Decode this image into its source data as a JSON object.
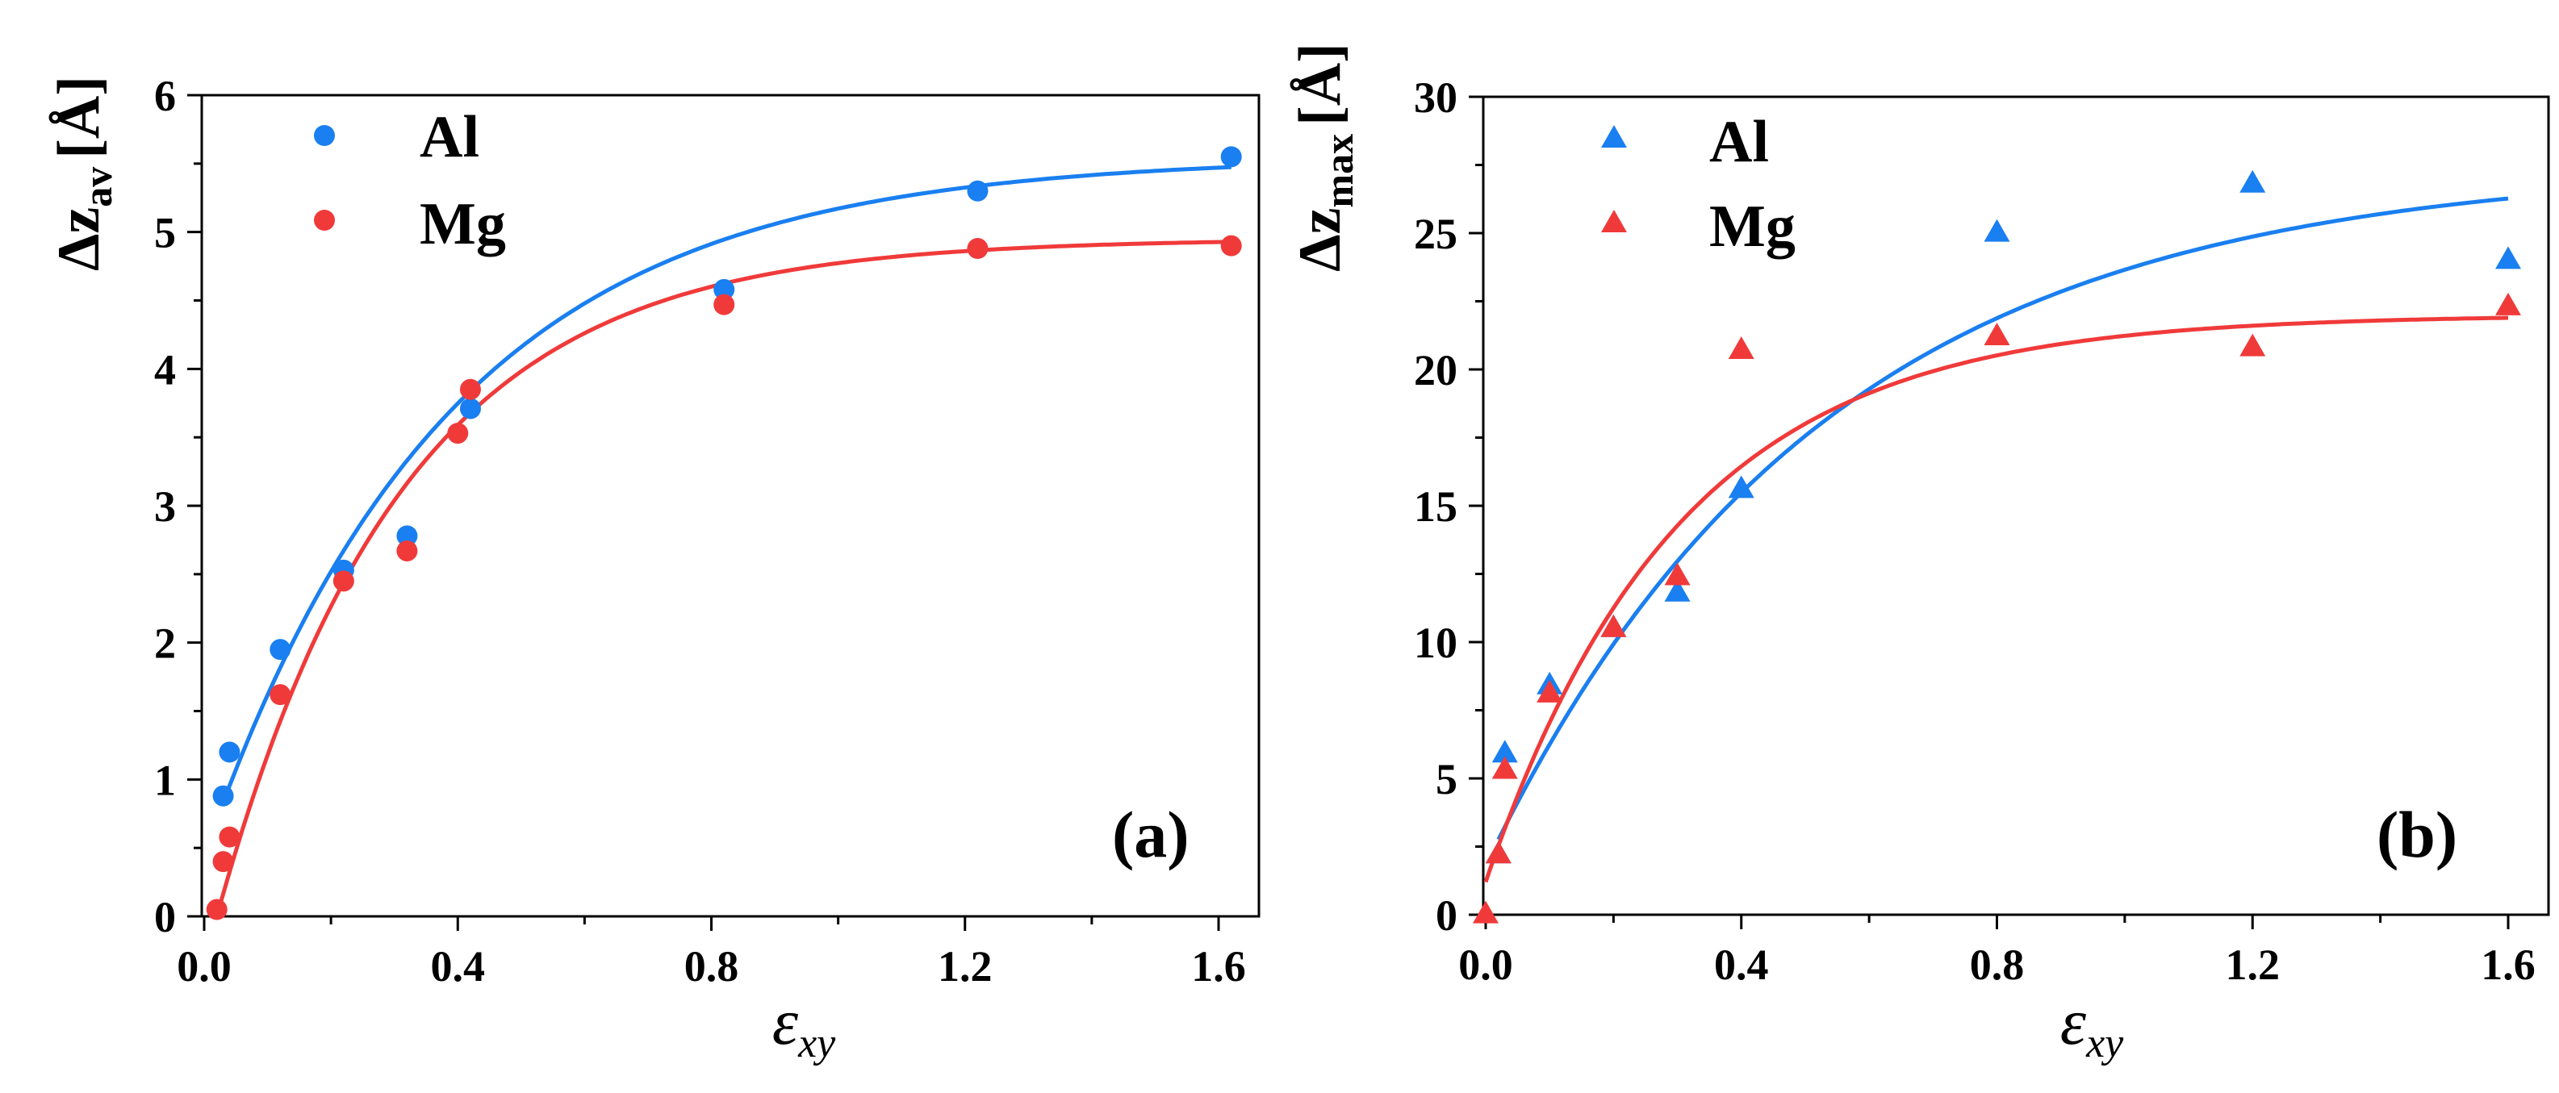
{
  "colors": {
    "Al": "#1a7ff0",
    "Mg": "#f03a3a"
  },
  "chart_data": [
    {
      "type": "scatter",
      "panel": "(a)",
      "ylabel": {
        "main": "Δz",
        "sub": "av",
        "unit": "[Å]"
      },
      "xlabel": {
        "main": "ε",
        "sub": "xy"
      },
      "xlim": [
        0,
        1.6
      ],
      "ylim": [
        0,
        6
      ],
      "xticks": [
        0.0,
        0.4,
        0.8,
        1.2,
        1.6
      ],
      "xtick_labels": [
        "0.0",
        "0.4",
        "0.8",
        "1.2",
        "1.6"
      ],
      "xminor": [
        0.2,
        0.6,
        1.0,
        1.4
      ],
      "yticks": [
        0,
        1,
        2,
        3,
        4,
        5,
        6
      ],
      "ytick_labels": [
        "0",
        "1",
        "2",
        "3",
        "4",
        "5",
        "6"
      ],
      "marker": "circle",
      "legend_position": "top-left",
      "series": [
        {
          "name": "Al",
          "x": [
            0.03,
            0.04,
            0.12,
            0.22,
            0.32,
            0.42,
            0.82,
            1.22,
            1.62
          ],
          "y": [
            0.88,
            1.2,
            1.95,
            2.53,
            2.78,
            3.71,
            4.58,
            5.3,
            5.55
          ],
          "fit": {
            "A": 5.55,
            "B": 5.1,
            "k": 2.6
          }
        },
        {
          "name": "Mg",
          "x": [
            0.02,
            0.03,
            0.04,
            0.12,
            0.22,
            0.32,
            0.4,
            0.42,
            0.82,
            1.22,
            1.62
          ],
          "y": [
            0.05,
            0.4,
            0.58,
            1.62,
            2.45,
            2.67,
            3.53,
            3.85,
            4.47,
            4.88,
            4.9
          ],
          "fit": {
            "A": 4.95,
            "B": 5.3,
            "k": 3.4
          }
        }
      ]
    },
    {
      "type": "scatter",
      "panel": "(b)",
      "ylabel": {
        "main": "Δz",
        "sub": "max",
        "unit": "[Å]"
      },
      "xlabel": {
        "main": "ε",
        "sub": "xy"
      },
      "xlim": [
        0,
        1.6
      ],
      "ylim": [
        0,
        30
      ],
      "xticks": [
        0.0,
        0.4,
        0.8,
        1.2,
        1.6
      ],
      "xtick_labels": [
        "0.0",
        "0.4",
        "0.8",
        "1.2",
        "1.6"
      ],
      "xminor": [
        0.2,
        0.6,
        1.0,
        1.4
      ],
      "yticks": [
        0,
        5,
        10,
        15,
        20,
        25,
        30
      ],
      "ytick_labels": [
        "0",
        "5",
        "10",
        "15",
        "20",
        "25",
        "30"
      ],
      "marker": "triangle",
      "legend_position": "top-left",
      "series": [
        {
          "name": "Al",
          "x": [
            0.02,
            0.03,
            0.1,
            0.2,
            0.3,
            0.4,
            0.8,
            1.2,
            1.6
          ],
          "y": [
            2.3,
            6.0,
            8.5,
            10.6,
            11.9,
            15.7,
            25.1,
            26.9,
            24.1
          ],
          "fit": {
            "A": 27.5,
            "B": 25.7,
            "k": 1.9
          }
        },
        {
          "name": "Mg",
          "x": [
            0.0,
            0.02,
            0.03,
            0.1,
            0.2,
            0.3,
            0.4,
            0.8,
            1.2,
            1.6
          ],
          "y": [
            0.1,
            2.3,
            5.4,
            8.2,
            10.6,
            12.5,
            20.8,
            21.3,
            20.9,
            22.4
          ],
          "fit": {
            "A": 22.0,
            "B": 20.8,
            "k": 3.3
          }
        }
      ]
    }
  ]
}
